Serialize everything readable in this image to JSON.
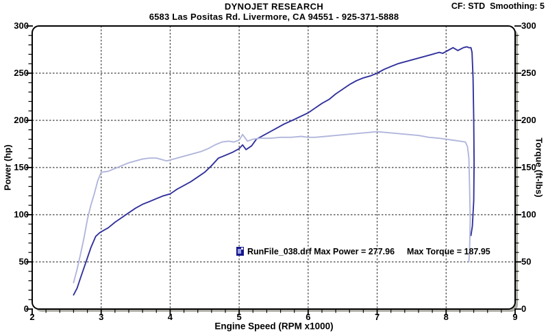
{
  "header": {
    "title": "DYNOJET RESEARCH",
    "subtitle": "6583 Las Positas Rd. Livermore, CA 94551 - 925-371-5888",
    "cf_label": "CF: STD  Smoothing: 5"
  },
  "chart_data": {
    "type": "line",
    "title": "DYNOJET RESEARCH",
    "xlabel": "Engine Speed (RPM x1000)",
    "ylabel_left": "Power (hp)",
    "ylabel_right": "Torque (ft-lbs)",
    "xlim": [
      2,
      9
    ],
    "ylim": [
      0,
      300
    ],
    "x_major_ticks": [
      2,
      3,
      4,
      5,
      6,
      7,
      8,
      9
    ],
    "x_minor_step": 0.2,
    "y_major_ticks": [
      0,
      50,
      100,
      150,
      200,
      250,
      300
    ],
    "y_minor_step": 10,
    "grid_style": "dashed",
    "legend_position": "inside-bottom-center",
    "legend": {
      "run_file": "RunFile_038.drf",
      "max_power": 277.96,
      "max_torque": 187.95,
      "power_entry": "RunFile_038.drf Max Power = 277.96",
      "torque_entry": "Max Torque = 187.95"
    },
    "colors": {
      "power_line": "#31319c",
      "torque_line": "#b1b6dc",
      "grid": "#3c3c3c",
      "plot_bg": "#ffffff",
      "shadow": "#aeaea6",
      "border": "#000000"
    },
    "series": [
      {
        "key": "power",
        "name": "Power (hp)",
        "color": "#31319c",
        "x": [
          2.6,
          2.65,
          2.7,
          2.78,
          2.85,
          2.92,
          2.98,
          3.05,
          3.1,
          3.2,
          3.3,
          3.4,
          3.5,
          3.6,
          3.7,
          3.8,
          3.9,
          4,
          4.1,
          4.2,
          4.3,
          4.4,
          4.5,
          4.6,
          4.7,
          4.8,
          4.9,
          5,
          5.05,
          5.1,
          5.18,
          5.25,
          5.35,
          5.5,
          5.65,
          5.8,
          6,
          6.1,
          6.2,
          6.3,
          6.4,
          6.5,
          6.6,
          6.7,
          6.8,
          6.9,
          7,
          7.1,
          7.2,
          7.3,
          7.4,
          7.55,
          7.7,
          7.8,
          7.9,
          7.95,
          8.05,
          8.1,
          8.17,
          8.25,
          8.3,
          8.33,
          8.36,
          8.375,
          8.39,
          8.4,
          8.405,
          8.4,
          8.38,
          8.36
        ],
        "values": [
          15,
          22,
          33,
          50,
          65,
          77,
          81,
          84,
          86,
          92,
          97,
          102,
          107,
          111,
          114,
          117,
          120,
          122,
          127,
          131,
          135,
          140,
          145,
          152,
          160,
          163,
          166,
          170,
          174,
          169,
          173,
          180,
          184,
          190,
          196,
          201,
          208,
          213,
          218,
          222,
          228,
          233,
          238,
          242,
          245,
          247,
          250,
          254,
          257,
          260,
          262,
          265,
          268,
          270,
          272,
          271,
          275,
          277,
          274,
          277,
          278,
          277,
          277,
          272,
          245,
          200,
          155,
          115,
          88,
          78
        ]
      },
      {
        "key": "torque",
        "name": "Torque (ft-lbs)",
        "color": "#b1b6dc",
        "x": [
          2.6,
          2.65,
          2.7,
          2.75,
          2.8,
          2.85,
          2.9,
          2.95,
          3,
          3.1,
          3.2,
          3.3,
          3.4,
          3.5,
          3.6,
          3.7,
          3.8,
          3.9,
          3.95,
          4.05,
          4.15,
          4.25,
          4.35,
          4.45,
          4.55,
          4.65,
          4.75,
          4.85,
          4.92,
          5,
          5.05,
          5.12,
          5.2,
          5.3,
          5.45,
          5.6,
          5.75,
          5.9,
          6,
          6.1,
          6.25,
          6.4,
          6.55,
          6.7,
          6.85,
          7,
          7.15,
          7.3,
          7.45,
          7.6,
          7.75,
          7.9,
          8,
          8.1,
          8.2,
          8.28,
          8.31,
          8.33,
          8.34,
          8.35,
          8.34,
          8.33
        ],
        "values": [
          28,
          42,
          58,
          75,
          95,
          110,
          122,
          136,
          145,
          146,
          149,
          152,
          155,
          157,
          159,
          160,
          160,
          158,
          157,
          159,
          161,
          163,
          165,
          167,
          170,
          174,
          177,
          178,
          177,
          179,
          185,
          178,
          180,
          181,
          181,
          182,
          182,
          183,
          182,
          182,
          183,
          184,
          185,
          186,
          187,
          188,
          187,
          186,
          185,
          184,
          182,
          181,
          180,
          179,
          178,
          177,
          172,
          160,
          130,
          95,
          62,
          50
        ]
      }
    ]
  }
}
